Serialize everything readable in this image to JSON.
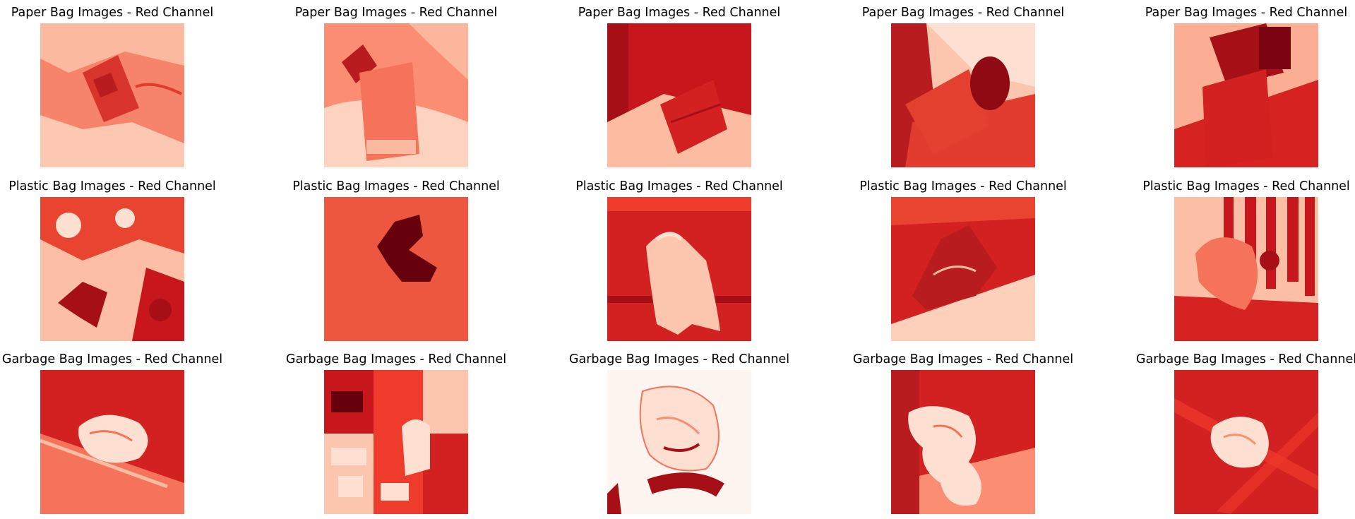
{
  "rows": [
    {
      "category": "paper",
      "titles": [
        "Paper Bag Images - Red Channel",
        "Paper Bag Images - Red Channel",
        "Paper Bag Images - Red Channel",
        "Paper Bag Images - Red Channel",
        "Paper Bag Images - Red Channel"
      ]
    },
    {
      "category": "plastic",
      "titles": [
        "Plastic Bag Images - Red Channel",
        "Plastic Bag Images - Red Channel",
        "Plastic Bag Images - Red Channel",
        "Plastic Bag Images - Red Channel",
        "Plastic Bag Images - Red Channel"
      ]
    },
    {
      "category": "garbage",
      "titles": [
        "Garbage Bag Images - Red Channel",
        "Garbage Bag Images - Red Channel",
        "Garbage Bag Images - Red Channel",
        "Garbage Bag Images - Red Channel",
        "Garbage Bag Images - Red Channel"
      ]
    }
  ],
  "colormap": {
    "name": "Reds",
    "light": "#fff5f0",
    "mid": "#fb6a4a",
    "dark": "#67000d"
  }
}
